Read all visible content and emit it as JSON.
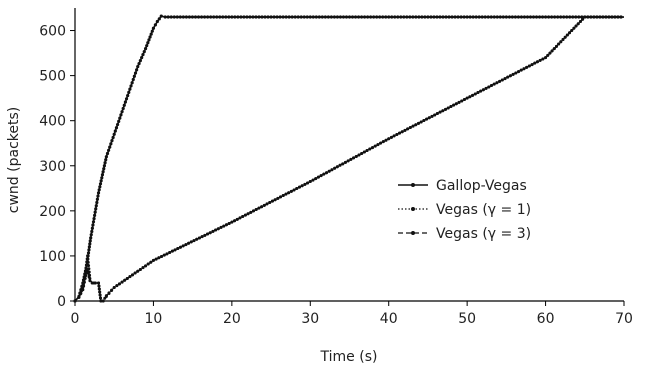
{
  "chart_data": {
    "type": "line",
    "xlabel": "Time (s)",
    "ylabel": "cwnd (packets)",
    "xlim": [
      0,
      70
    ],
    "ylim": [
      0,
      650
    ],
    "xticks": [
      "0",
      "10",
      "20",
      "30",
      "40",
      "50",
      "60",
      "70"
    ],
    "yticks": [
      "0",
      "100",
      "200",
      "300",
      "400",
      "500",
      "600"
    ],
    "grid": false,
    "legend_position": "right",
    "series": [
      {
        "name": "Gallop-Vegas",
        "style": "solid-dot",
        "x": [
          0,
          0.5,
          1,
          1.5,
          2,
          2.5,
          3,
          3.5,
          4,
          5,
          6,
          7,
          8,
          9,
          10,
          10.5,
          11,
          11.5,
          20,
          30,
          40,
          50,
          60,
          70
        ],
        "y": [
          0,
          10,
          40,
          80,
          140,
          190,
          240,
          280,
          320,
          370,
          420,
          470,
          520,
          560,
          605,
          620,
          632,
          630,
          630,
          630,
          630,
          630,
          630,
          630
        ]
      },
      {
        "name": "Vegas (γ = 1)",
        "style": "dotted-dot",
        "x": [
          0,
          0.5,
          1,
          1.3,
          1.6,
          1.9,
          2.2,
          2.4,
          2.6,
          3.0,
          3.3,
          3.6,
          4,
          5,
          10,
          20,
          30,
          40,
          50,
          60,
          65,
          70
        ],
        "y": [
          0,
          8,
          30,
          60,
          100,
          50,
          40,
          40,
          40,
          40,
          0,
          0,
          10,
          30,
          90,
          175,
          265,
          360,
          450,
          540,
          630,
          630
        ]
      },
      {
        "name": "Vegas (γ = 3)",
        "style": "dashed-dot",
        "x": [
          0,
          0.5,
          1,
          1.3,
          1.6,
          1.9,
          2.2,
          2.4,
          2.6,
          3.0,
          3.3,
          3.6,
          4,
          5,
          10,
          20,
          30,
          40,
          50,
          60,
          65,
          70
        ],
        "y": [
          0,
          8,
          25,
          50,
          70,
          45,
          40,
          40,
          40,
          40,
          0,
          0,
          12,
          30,
          90,
          175,
          265,
          360,
          450,
          540,
          630,
          630
        ]
      }
    ]
  }
}
